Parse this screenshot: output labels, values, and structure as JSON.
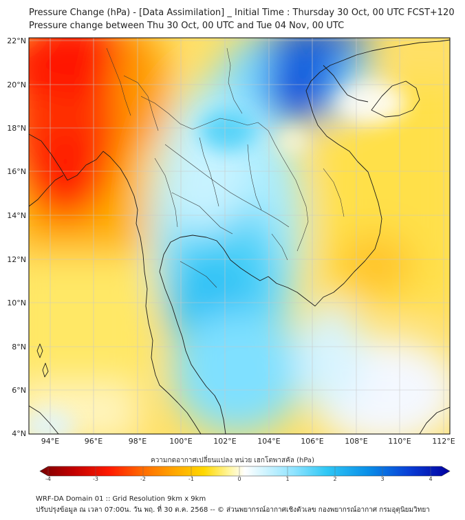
{
  "title_line1": "Pressure Change (hPa) - [Data Assimilation] _ Initial Time : Thursday 30 Oct, 00 UTC FCST+120",
  "title_line2": "Pressure change between Thu 30 Oct, 00 UTC and Tue 04 Nov, 00 UTC",
  "map": {
    "lat_labels": [
      "22°N",
      "20°N",
      "18°N",
      "16°N",
      "14°N",
      "12°N",
      "10°N",
      "8°N",
      "6°N",
      "4°N"
    ],
    "lon_labels": [
      "94°E",
      "96°E",
      "98°E",
      "100°E",
      "102°E",
      "104°E",
      "106°E",
      "108°E",
      "110°E",
      "112°E"
    ],
    "gridline_color": "#c8c8c8",
    "coast_color": "#1a1a1a"
  },
  "colorbar": {
    "title": "ความกดอากาศเปลี่ยนแปลง หน่วย เฮกโตพาสคัล (hPa)",
    "ticks": [
      "-4",
      "-3",
      "-2",
      "-1",
      "0",
      "1",
      "2",
      "3",
      "4"
    ],
    "range": [
      -4,
      4
    ],
    "colors": [
      "#7a0000",
      "#c00000",
      "#ff1a00",
      "#ff6a00",
      "#ffa800",
      "#ffd800",
      "#fff59a",
      "#ffffff",
      "#d8f6ff",
      "#8ee3ff",
      "#2fc7f5",
      "#0a8fe8",
      "#0a3fd6",
      "#0000a0"
    ]
  },
  "footer_line1": "WRF-DA Domain 01 :: Grid Resolution 9km x 9km",
  "footer_line2": "ปรับปรุงข้อมูล ณ เวลา 07:00น. วัน พฤ. ที่ 30 ต.ค. 2568 -- © ส่วนพยากรณ์อากาศเชิงตัวเลข กองพยากรณ์อากาศ กรมอุตุนิยมวิทยา"
}
